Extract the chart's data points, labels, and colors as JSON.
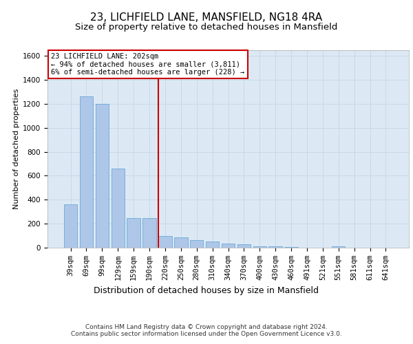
{
  "title1": "23, LICHFIELD LANE, MANSFIELD, NG18 4RA",
  "title2": "Size of property relative to detached houses in Mansfield",
  "xlabel": "Distribution of detached houses by size in Mansfield",
  "ylabel": "Number of detached properties",
  "categories": [
    "39sqm",
    "69sqm",
    "99sqm",
    "129sqm",
    "159sqm",
    "190sqm",
    "220sqm",
    "250sqm",
    "280sqm",
    "310sqm",
    "340sqm",
    "370sqm",
    "400sqm",
    "430sqm",
    "460sqm",
    "491sqm",
    "521sqm",
    "551sqm",
    "581sqm",
    "611sqm",
    "641sqm"
  ],
  "values": [
    360,
    1260,
    1200,
    660,
    245,
    245,
    100,
    85,
    65,
    50,
    35,
    30,
    10,
    10,
    5,
    0,
    0,
    10,
    0,
    0,
    0
  ],
  "bar_color": "#aec6e8",
  "bar_edge_color": "#6aaad4",
  "grid_color": "#c8d8e8",
  "background_color": "#dce9f5",
  "vline_color": "#cc0000",
  "annotation_text": "23 LICHFIELD LANE: 202sqm\n← 94% of detached houses are smaller (3,811)\n6% of semi-detached houses are larger (228) →",
  "annotation_box_color": "#ffffff",
  "annotation_box_edge_color": "#cc0000",
  "footer": "Contains HM Land Registry data © Crown copyright and database right 2024.\nContains public sector information licensed under the Open Government Licence v3.0.",
  "ylim": [
    0,
    1650
  ],
  "yticks": [
    0,
    200,
    400,
    600,
    800,
    1000,
    1200,
    1400,
    1600
  ],
  "title1_fontsize": 11,
  "title2_fontsize": 9.5,
  "xlabel_fontsize": 9,
  "ylabel_fontsize": 8,
  "tick_fontsize": 7.5,
  "annotation_fontsize": 7.5,
  "footer_fontsize": 6.5
}
